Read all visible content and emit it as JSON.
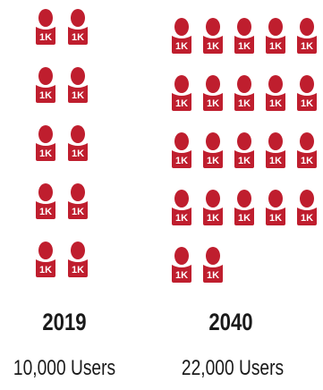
{
  "colors": {
    "icon": "#bf1e2e",
    "icon_text": "#ffffff",
    "text": "#1a1a1a"
  },
  "chart_data": {
    "type": "pictograph",
    "icon": "person-icon",
    "unit_label": "1K",
    "unit_value": 1000,
    "groups": [
      {
        "year": "2019",
        "caption": "10,000 Users",
        "icon_count": 10,
        "columns": 2
      },
      {
        "year": "2040",
        "caption": "22,000 Users",
        "icon_count": 22,
        "columns": 5
      }
    ]
  }
}
